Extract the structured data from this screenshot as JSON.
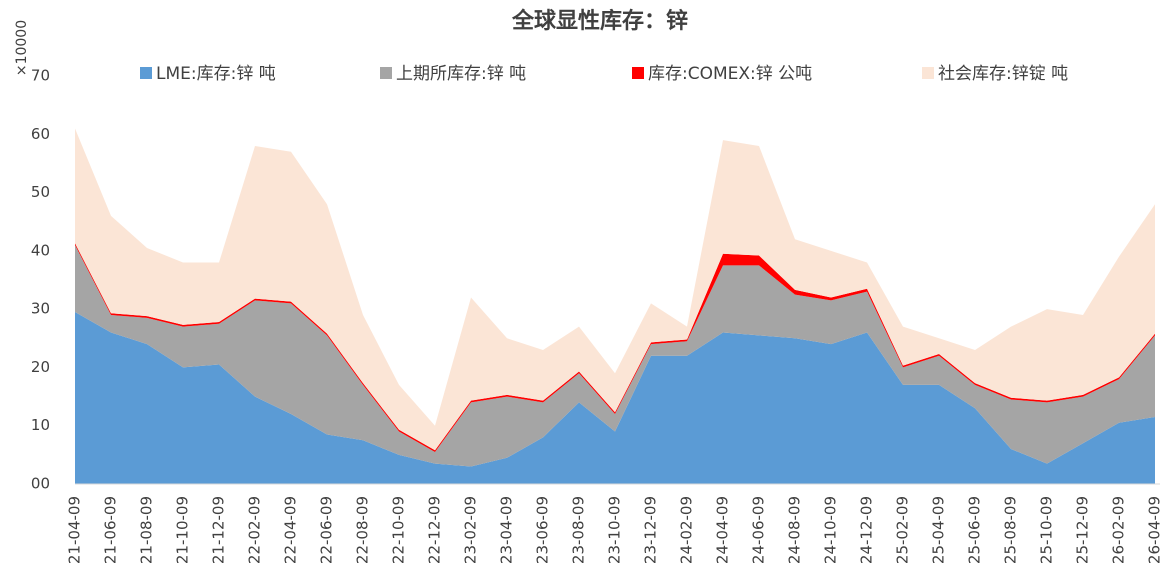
{
  "chart_data": {
    "type": "stacked_area",
    "title": "全球显性库存：锌",
    "y_unit_label": "×10000",
    "categories": [
      "21-04-09",
      "21-06-09",
      "21-08-09",
      "21-10-09",
      "21-12-09",
      "22-02-09",
      "22-04-09",
      "22-06-09",
      "22-08-09",
      "22-10-09",
      "22-12-09",
      "23-02-09",
      "23-04-09",
      "23-06-09",
      "23-08-09",
      "23-10-09",
      "23-12-09",
      "24-02-09",
      "24-04-09",
      "24-06-09",
      "24-08-09",
      "24-10-09",
      "24-12-09",
      "25-02-09",
      "25-04-09",
      "25-06-09",
      "25-08-09",
      "25-10-09",
      "25-12-09",
      "26-02-09",
      "26-04-09"
    ],
    "series": [
      {
        "name": "LME:库存:锌 吨",
        "color": "#5b9bd5",
        "values": [
          29.5,
          26,
          24,
          20,
          20.5,
          15,
          12,
          8.5,
          7.5,
          5,
          3.5,
          3,
          4.5,
          8,
          14,
          9,
          22,
          22,
          26,
          25.5,
          25,
          24,
          26,
          17,
          17,
          13,
          6,
          3.5,
          7,
          10.5,
          11.5
        ]
      },
      {
        "name": "上期所库存:锌 吨",
        "color": "#a5a5a5",
        "values": [
          11.5,
          3,
          4.5,
          7,
          7,
          16.5,
          19,
          17,
          9.5,
          4,
          2,
          11,
          10.5,
          6,
          5,
          3,
          2,
          2.5,
          11.5,
          12,
          7.5,
          7.5,
          7,
          3,
          5,
          4,
          8.5,
          10.5,
          8,
          7.5,
          14
        ]
      },
      {
        "name": "库存:COMEX:锌 公吨",
        "color": "#ff0000",
        "values": [
          0.3,
          0.3,
          0.3,
          0.3,
          0.3,
          0.3,
          0.3,
          0.3,
          0.3,
          0.3,
          0.3,
          0.3,
          0.3,
          0.3,
          0.3,
          0.3,
          0.3,
          0.3,
          2,
          1.7,
          0.8,
          0.5,
          0.5,
          0.3,
          0.3,
          0.3,
          0.3,
          0.3,
          0.3,
          0.3,
          0.3
        ]
      },
      {
        "name": "社会库存:锌锭 吨",
        "color": "#fbe5d6",
        "values": [
          19.7,
          16.7,
          11.7,
          10.7,
          10.2,
          26.2,
          25.7,
          22.2,
          11.7,
          7.7,
          4.2,
          17.7,
          9.7,
          8.7,
          7.7,
          6.7,
          6.7,
          2.2,
          19.5,
          18.8,
          8.7,
          8,
          4.5,
          6.7,
          2.7,
          5.7,
          12.2,
          15.7,
          13.7,
          20.7,
          22.2
        ]
      }
    ],
    "ylim": [
      0,
      70
    ],
    "yticks": [
      {
        "value": 0,
        "label": "00"
      },
      10,
      20,
      30,
      40,
      50,
      60,
      70
    ]
  }
}
